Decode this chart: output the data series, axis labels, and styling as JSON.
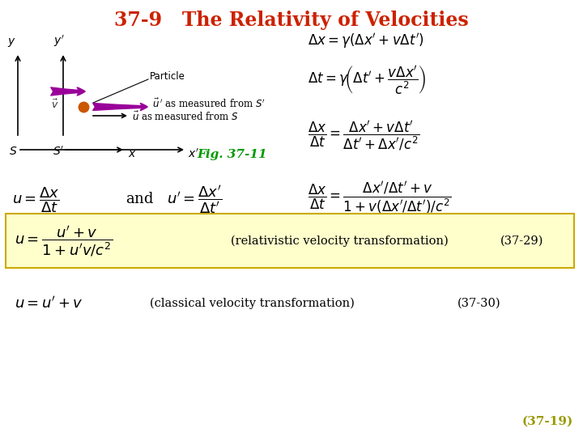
{
  "title": "37-9   The Relativity of Velocities",
  "title_color": "#cc2200",
  "title_fontsize": 17,
  "fig_caption": "(37-19)",
  "fig_caption_color": "#999900",
  "background_color": "#ffffff",
  "highlight_box_color": "#ffffcc",
  "highlight_box_edge": "#ccaa00",
  "fig_label": "Fig. 37-11",
  "fig_label_color": "#009900"
}
